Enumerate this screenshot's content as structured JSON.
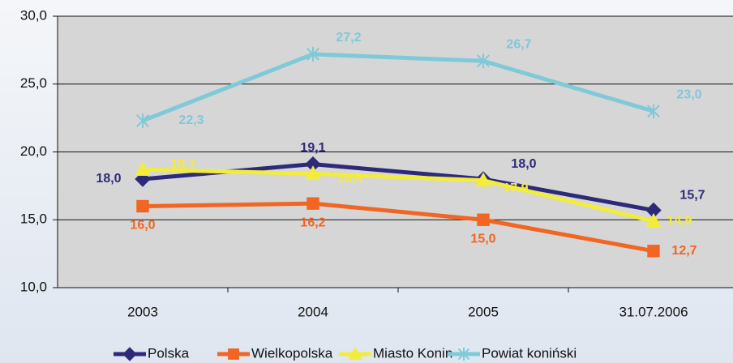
{
  "chart_data": {
    "type": "line",
    "categories": [
      "2003",
      "2004",
      "2005",
      "31.07.2006"
    ],
    "series": [
      {
        "name": "Polska",
        "color": "#2e2a7a",
        "marker": "diamond",
        "values": [
          18.0,
          19.1,
          18.0,
          15.7
        ],
        "value_labels": [
          "18,0",
          "19,1",
          "18,0",
          "15,7"
        ]
      },
      {
        "name": "Wielkopolska",
        "color": "#f26522",
        "marker": "square",
        "values": [
          16.0,
          16.2,
          15.0,
          12.7
        ],
        "value_labels": [
          "16,0",
          "16,2",
          "15,0",
          "12,7"
        ]
      },
      {
        "name": "Miasto Konin",
        "color": "#f2ec3c",
        "marker": "triangle",
        "values": [
          18.7,
          18.4,
          17.9,
          14.9
        ],
        "value_labels": [
          "18,7",
          "18,4",
          "17,9",
          "14,9"
        ]
      },
      {
        "name": "Powiat koniński",
        "color": "#7fc9d9",
        "marker": "asterisk",
        "values": [
          22.3,
          27.2,
          26.7,
          23.0
        ],
        "value_labels": [
          "22,3",
          "27,2",
          "26,7",
          "23,0"
        ]
      }
    ],
    "ylim": [
      10,
      30
    ],
    "yticks": [
      {
        "value": 10,
        "label": "10,0"
      },
      {
        "value": 15,
        "label": "15,0"
      },
      {
        "value": 20,
        "label": "20,0"
      },
      {
        "value": 25,
        "label": "25,0"
      },
      {
        "value": 30,
        "label": "30,0"
      }
    ],
    "grid": true,
    "legend": "bottom"
  }
}
